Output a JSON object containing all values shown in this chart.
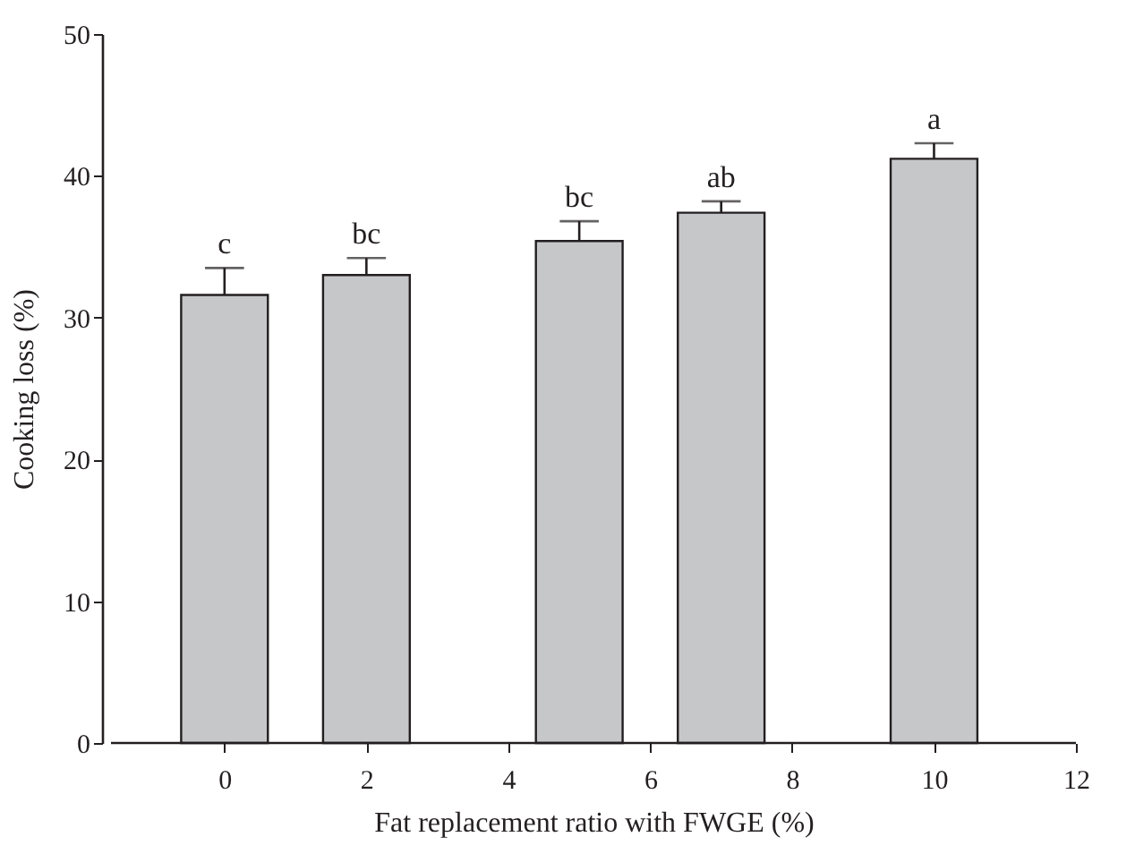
{
  "chart_data": {
    "type": "bar",
    "xlabel": "Fat replacement ratio with FWGE (%)",
    "ylabel": "Cooking loss (%)",
    "x": [
      0,
      2,
      5,
      7,
      10
    ],
    "values": [
      31.6,
      33.0,
      35.4,
      37.4,
      41.2
    ],
    "errors": [
      1.9,
      1.2,
      1.4,
      0.8,
      1.1
    ],
    "color": "#c6c7c9",
    "xlim": [
      -1.6,
      12
    ],
    "xticks": [
      0,
      2,
      4,
      6,
      8,
      10,
      12
    ],
    "ylim": [
      0,
      50
    ],
    "yticks": [
      0,
      10,
      20,
      30,
      40,
      50
    ],
    "grid": false,
    "annotations": [
      {
        "text": "c",
        "x": 0,
        "y": 33.5
      },
      {
        "text": "bc",
        "x": 2,
        "y": 34.2
      },
      {
        "text": "bc",
        "x": 5,
        "y": 36.8
      },
      {
        "text": "ab",
        "x": 7,
        "y": 38.2
      },
      {
        "text": "a",
        "x": 10,
        "y": 42.3
      }
    ]
  }
}
